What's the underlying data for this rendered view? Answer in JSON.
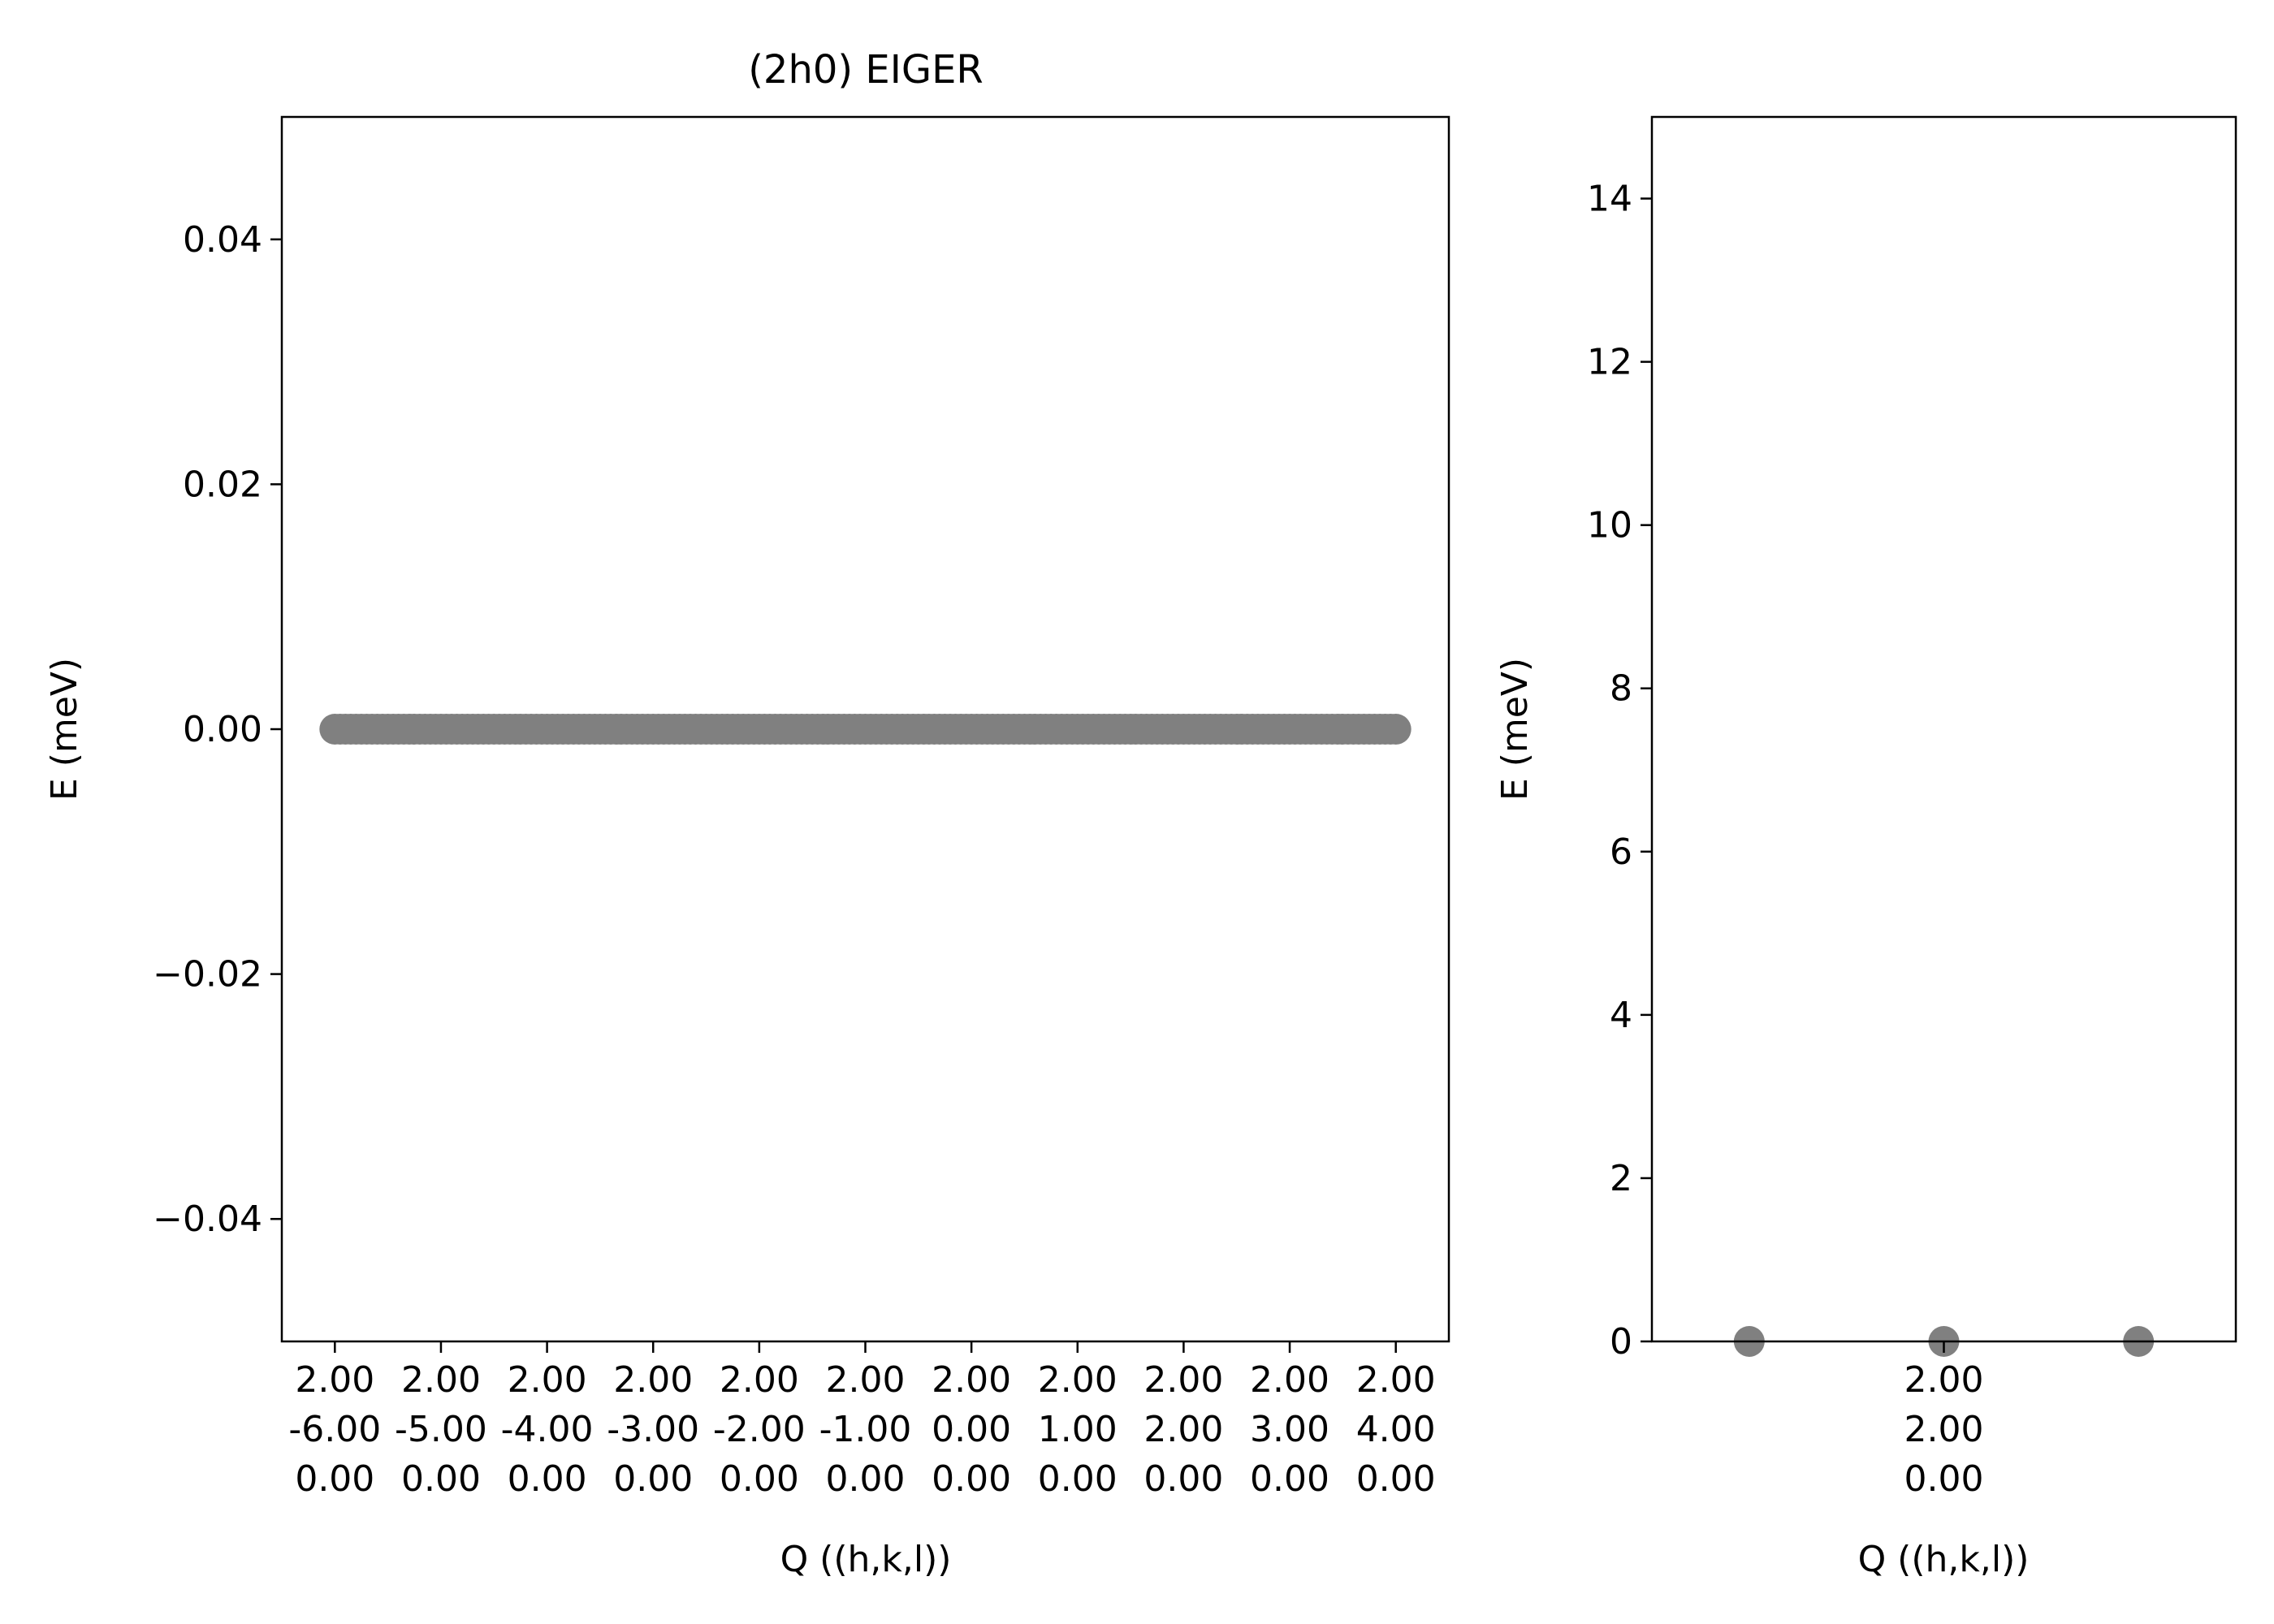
{
  "chart_data": [
    {
      "type": "scatter",
      "title": "(2h0) EIGER",
      "xlabel": "Q ((h,k,l))",
      "ylabel": "E (meV)",
      "ylim": [
        -0.05,
        0.05
      ],
      "xlim": [
        -6.5,
        4.5
      ],
      "yticks": [
        {
          "value": 0.04,
          "label": "0.04"
        },
        {
          "value": 0.02,
          "label": "0.02"
        },
        {
          "value": 0.0,
          "label": "0.00"
        },
        {
          "value": -0.02,
          "label": "−0.02"
        },
        {
          "value": -0.04,
          "label": "−0.04"
        }
      ],
      "xticks": [
        {
          "value": -6,
          "lines": [
            "2.00",
            "-6.00",
            "0.00"
          ]
        },
        {
          "value": -5,
          "lines": [
            "2.00",
            "-5.00",
            "0.00"
          ]
        },
        {
          "value": -4,
          "lines": [
            "2.00",
            "-4.00",
            "0.00"
          ]
        },
        {
          "value": -3,
          "lines": [
            "2.00",
            "-3.00",
            "0.00"
          ]
        },
        {
          "value": -2,
          "lines": [
            "2.00",
            "-2.00",
            "0.00"
          ]
        },
        {
          "value": -1,
          "lines": [
            "2.00",
            "-1.00",
            "0.00"
          ]
        },
        {
          "value": 0,
          "lines": [
            "2.00",
            "0.00",
            "0.00"
          ]
        },
        {
          "value": 1,
          "lines": [
            "2.00",
            "1.00",
            "0.00"
          ]
        },
        {
          "value": 2,
          "lines": [
            "2.00",
            "2.00",
            "0.00"
          ]
        },
        {
          "value": 3,
          "lines": [
            "2.00",
            "3.00",
            "0.00"
          ]
        },
        {
          "value": 4,
          "lines": [
            "2.00",
            "4.00",
            "0.00"
          ]
        }
      ],
      "series": [
        {
          "color": "#808080",
          "x_range": [
            -6,
            4
          ],
          "point_count": 201,
          "y": 0.0
        }
      ],
      "grid": false,
      "legend": "none"
    },
    {
      "type": "scatter",
      "title": "",
      "xlabel": "Q ((h,k,l))",
      "ylabel": "E (meV)",
      "ylim": [
        0,
        15
      ],
      "xlim": [
        -1.5,
        1.5
      ],
      "yticks": [
        {
          "value": 0,
          "label": "0"
        },
        {
          "value": 2,
          "label": "2"
        },
        {
          "value": 4,
          "label": "4"
        },
        {
          "value": 6,
          "label": "6"
        },
        {
          "value": 8,
          "label": "8"
        },
        {
          "value": 10,
          "label": "10"
        },
        {
          "value": 12,
          "label": "12"
        },
        {
          "value": 14,
          "label": "14"
        }
      ],
      "xticks": [
        {
          "value": 0,
          "lines": [
            "2.00",
            "2.00",
            "0.00"
          ]
        }
      ],
      "series": [
        {
          "color": "#808080",
          "points": [
            {
              "x": -1,
              "y": 0
            },
            {
              "x": 0,
              "y": 0
            },
            {
              "x": 1,
              "y": 0
            }
          ]
        }
      ],
      "grid": false,
      "legend": "none"
    }
  ]
}
